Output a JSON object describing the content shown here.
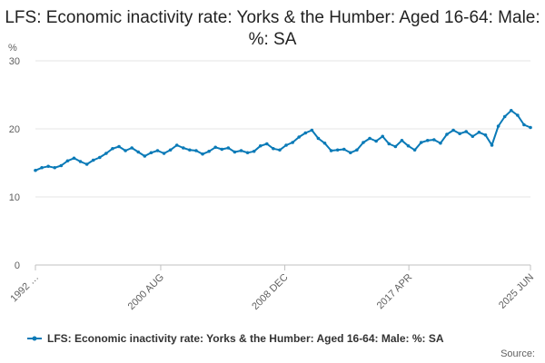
{
  "chart_data": {
    "type": "line",
    "title": "LFS: Economic inactivity rate: Yorks & the Humber: Aged 16-64: Male: %: SA",
    "ylabel": "%",
    "xlabel": "",
    "ylim": [
      0,
      30
    ],
    "yticks": [
      "0",
      "10",
      "20",
      "30"
    ],
    "grid": true,
    "legend_position": "bottom",
    "source_label": "Source:",
    "color": "#0a7ab7",
    "x_ticks": [
      {
        "date": "1992 MAR",
        "label": "1992 …"
      },
      {
        "date": "2000 AUG",
        "label": "2000 AUG"
      },
      {
        "date": "2008 DEC",
        "label": "2008 DEC"
      },
      {
        "date": "2017 APR",
        "label": "2017 APR"
      },
      {
        "date": "2025 JUN",
        "label": "2025 JUN"
      }
    ],
    "series": [
      {
        "name": "LFS: Economic inactivity rate: Yorks & the Humber: Aged 16-64: Male: %: SA",
        "points": [
          [
            "1992-03",
            13.9
          ],
          [
            "1992-09",
            14.3
          ],
          [
            "1993-03",
            14.5
          ],
          [
            "1993-09",
            14.3
          ],
          [
            "1994-03",
            14.6
          ],
          [
            "1994-09",
            15.3
          ],
          [
            "1995-03",
            15.7
          ],
          [
            "1995-09",
            15.2
          ],
          [
            "1996-03",
            14.8
          ],
          [
            "1996-09",
            15.4
          ],
          [
            "1997-03",
            15.8
          ],
          [
            "1997-09",
            16.4
          ],
          [
            "1998-03",
            17.1
          ],
          [
            "1998-09",
            17.4
          ],
          [
            "1999-03",
            16.8
          ],
          [
            "1999-09",
            17.2
          ],
          [
            "2000-03",
            16.6
          ],
          [
            "2000-09",
            16.0
          ],
          [
            "2001-03",
            16.5
          ],
          [
            "2001-09",
            16.8
          ],
          [
            "2002-03",
            16.4
          ],
          [
            "2002-09",
            16.9
          ],
          [
            "2003-03",
            17.6
          ],
          [
            "2003-09",
            17.2
          ],
          [
            "2004-03",
            16.9
          ],
          [
            "2004-09",
            16.8
          ],
          [
            "2005-03",
            16.3
          ],
          [
            "2005-09",
            16.7
          ],
          [
            "2006-03",
            17.3
          ],
          [
            "2006-09",
            17.0
          ],
          [
            "2007-03",
            17.2
          ],
          [
            "2007-09",
            16.6
          ],
          [
            "2008-03",
            16.8
          ],
          [
            "2008-09",
            16.5
          ],
          [
            "2009-03",
            16.7
          ],
          [
            "2009-09",
            17.5
          ],
          [
            "2010-03",
            17.8
          ],
          [
            "2010-09",
            17.1
          ],
          [
            "2011-03",
            16.9
          ],
          [
            "2011-09",
            17.6
          ],
          [
            "2012-03",
            18.0
          ],
          [
            "2012-09",
            18.8
          ],
          [
            "2013-03",
            19.4
          ],
          [
            "2013-09",
            19.8
          ],
          [
            "2014-03",
            18.6
          ],
          [
            "2014-09",
            17.9
          ],
          [
            "2015-03",
            16.8
          ],
          [
            "2015-09",
            16.9
          ],
          [
            "2016-03",
            17.0
          ],
          [
            "2016-09",
            16.5
          ],
          [
            "2017-03",
            16.9
          ],
          [
            "2017-09",
            18.0
          ],
          [
            "2018-03",
            18.6
          ],
          [
            "2018-09",
            18.2
          ],
          [
            "2019-03",
            18.9
          ],
          [
            "2019-09",
            17.8
          ],
          [
            "2020-03",
            17.4
          ],
          [
            "2020-09",
            18.3
          ],
          [
            "2021-03",
            17.5
          ],
          [
            "2021-09",
            16.9
          ],
          [
            "2022-03",
            18.0
          ],
          [
            "2022-09",
            18.3
          ],
          [
            "2023-03",
            18.4
          ],
          [
            "2023-09",
            17.9
          ],
          [
            "2024-03",
            19.2
          ],
          [
            "2024-09",
            19.8
          ],
          [
            "2025-03",
            19.3
          ],
          [
            "2025-09",
            19.6
          ],
          [
            "2026-03",
            18.9
          ],
          [
            "2026-09",
            19.5
          ],
          [
            "2027-03",
            19.1
          ],
          [
            "2027-09",
            17.6
          ],
          [
            "2028-03",
            20.4
          ],
          [
            "2028-09",
            21.8
          ],
          [
            "2029-03",
            22.7
          ],
          [
            "2029-09",
            22.0
          ],
          [
            "2030-03",
            20.6
          ],
          [
            "2030-09",
            20.2
          ]
        ]
      }
    ]
  }
}
